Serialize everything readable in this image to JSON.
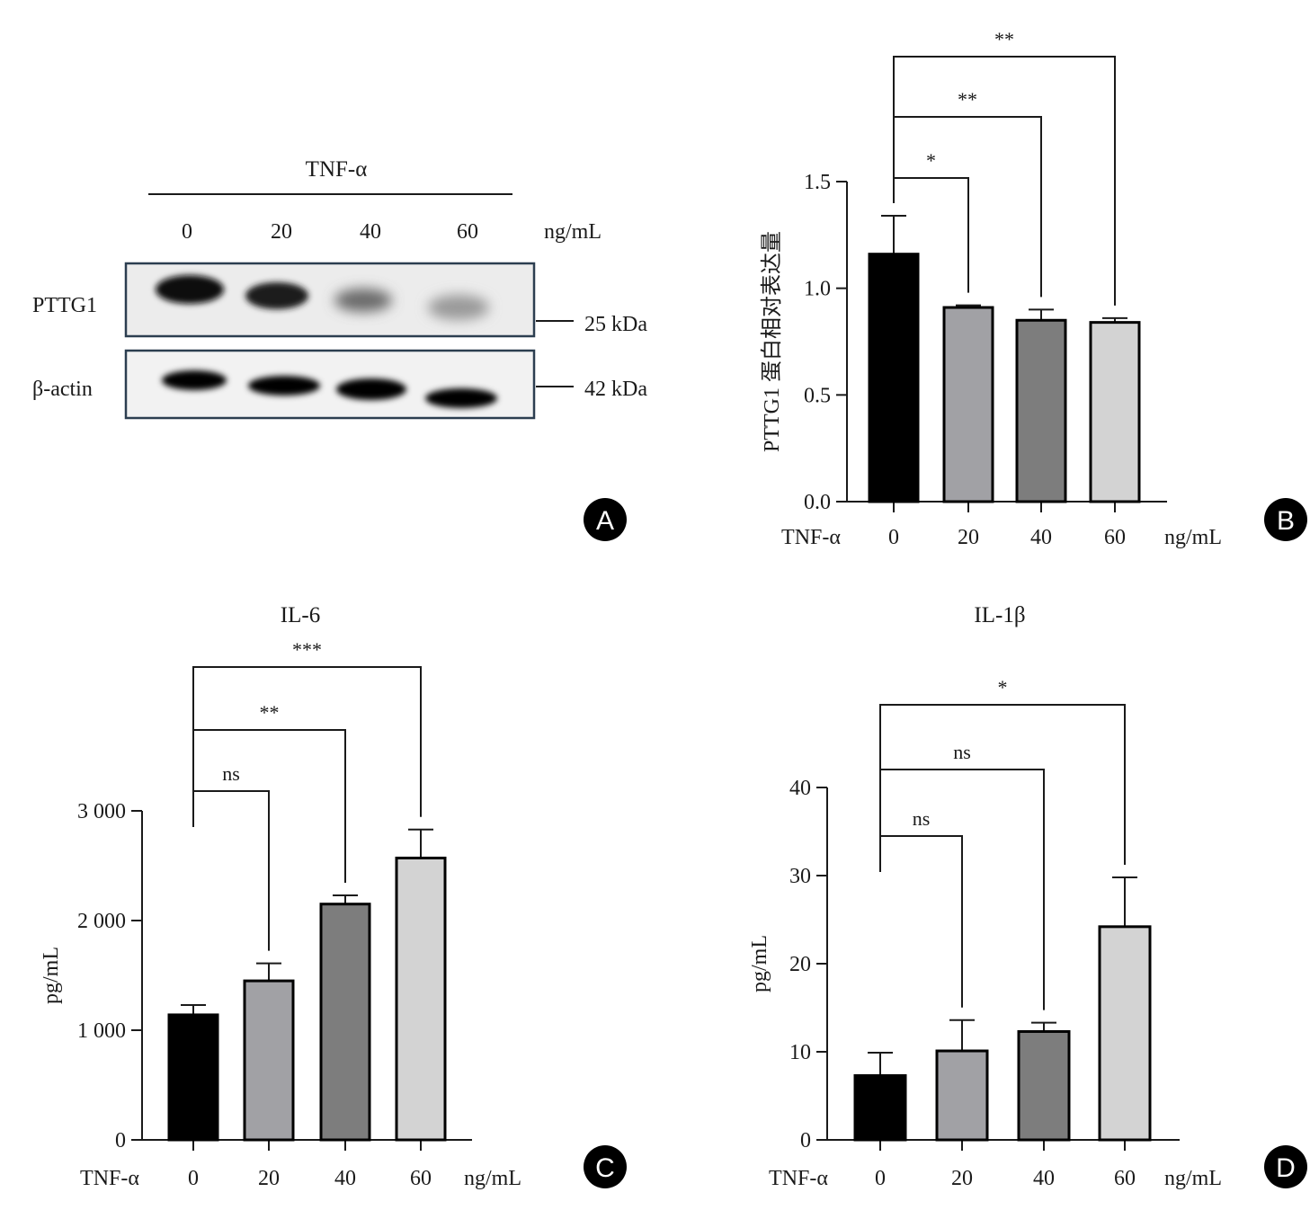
{
  "panel_a": {
    "treatment": "TNF-α",
    "lanes": [
      "0",
      "20",
      "40",
      "60"
    ],
    "unit": "ng/mL",
    "rows": [
      {
        "name": "PTTG1",
        "kda": "25 kDa"
      },
      {
        "name": "β-actin",
        "kda": "42 kDa"
      }
    ],
    "badge": "A"
  },
  "chart_data": [
    {
      "panel": "B",
      "type": "bar",
      "title": "",
      "ylabel": "PTTG1 蛋白相对表达量",
      "xlabel_prefix": "TNF-α",
      "x_unit": "ng/mL",
      "categories": [
        "0",
        "20",
        "40",
        "60"
      ],
      "values": [
        1.16,
        0.91,
        0.85,
        0.84
      ],
      "errors": [
        0.18,
        0.01,
        0.05,
        0.02
      ],
      "colors": [
        "#000000",
        "#a1a1a5",
        "#7d7d7d",
        "#d3d3d3"
      ],
      "ylim": [
        0,
        1.5
      ],
      "yticks": [
        0,
        0.5,
        1.0,
        1.5
      ],
      "ytick_labels": [
        "0.0",
        "0.5",
        "1.0",
        "1.5"
      ],
      "significance": [
        {
          "from": "0",
          "to": "20",
          "label": "*"
        },
        {
          "from": "0",
          "to": "40",
          "label": "**"
        },
        {
          "from": "0",
          "to": "60",
          "label": "**"
        }
      ]
    },
    {
      "panel": "C",
      "type": "bar",
      "title": "IL-6",
      "ylabel": "pg/mL",
      "xlabel_prefix": "TNF-α",
      "x_unit": "ng/mL",
      "categories": [
        "0",
        "20",
        "40",
        "60"
      ],
      "values": [
        1140,
        1450,
        2150,
        2570
      ],
      "errors": [
        90,
        160,
        80,
        260
      ],
      "colors": [
        "#000000",
        "#a1a1a5",
        "#7d7d7d",
        "#d3d3d3"
      ],
      "ylim": [
        0,
        3000
      ],
      "yticks": [
        0,
        1000,
        2000,
        3000
      ],
      "ytick_labels": [
        "0",
        "1 000",
        "2 000",
        "3 000"
      ],
      "significance": [
        {
          "from": "0",
          "to": "20",
          "label": "ns"
        },
        {
          "from": "0",
          "to": "40",
          "label": "**"
        },
        {
          "from": "0",
          "to": "60",
          "label": "***"
        }
      ]
    },
    {
      "panel": "D",
      "type": "bar",
      "title": "IL-1β",
      "ylabel": "pg/mL",
      "xlabel_prefix": "TNF-α",
      "x_unit": "ng/mL",
      "categories": [
        "0",
        "20",
        "40",
        "60"
      ],
      "values": [
        7.3,
        10.1,
        12.3,
        24.2
      ],
      "errors": [
        2.6,
        3.5,
        1.0,
        5.6
      ],
      "colors": [
        "#000000",
        "#a1a1a5",
        "#7d7d7d",
        "#d3d3d3"
      ],
      "ylim": [
        0,
        40
      ],
      "yticks": [
        0,
        10,
        20,
        30,
        40
      ],
      "ytick_labels": [
        "0",
        "10",
        "20",
        "30",
        "40"
      ],
      "significance": [
        {
          "from": "0",
          "to": "20",
          "label": "ns"
        },
        {
          "from": "0",
          "to": "40",
          "label": "ns"
        },
        {
          "from": "0",
          "to": "60",
          "label": "*"
        }
      ]
    }
  ]
}
